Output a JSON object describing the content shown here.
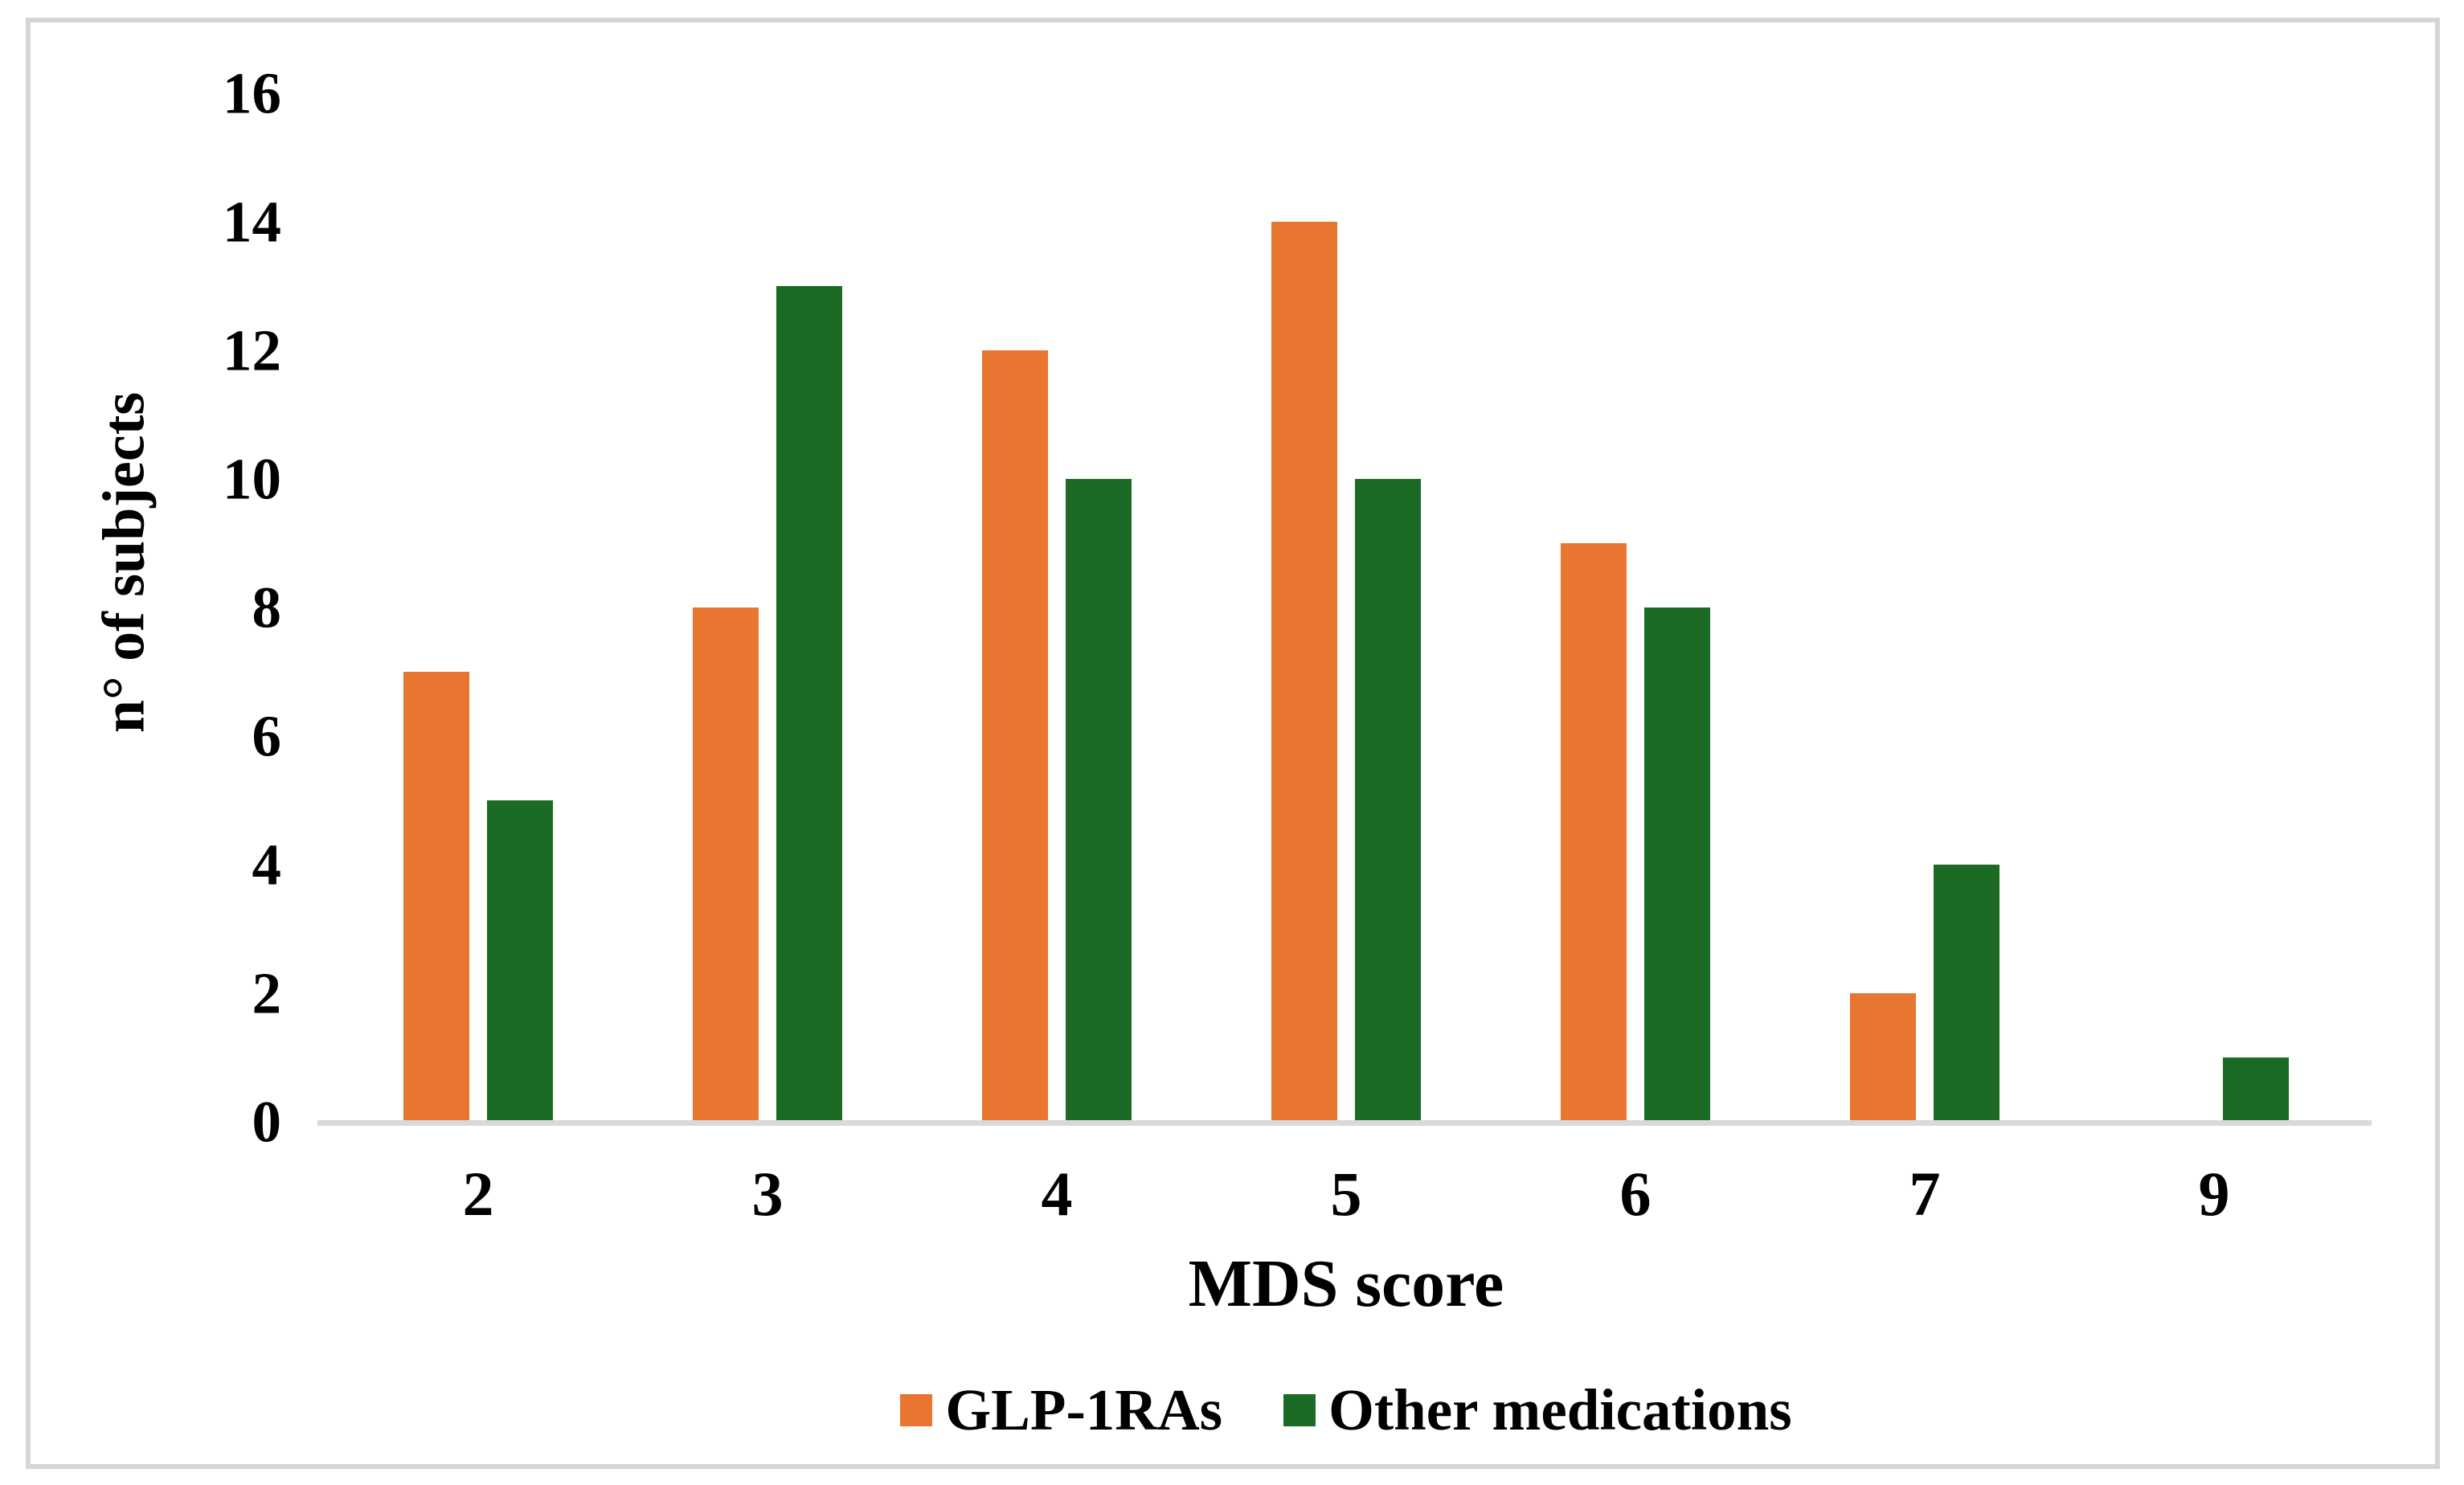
{
  "figure": {
    "background": "#FFFFFF",
    "frame_border_color": "#D6D6D6"
  },
  "chart_data": {
    "type": "bar",
    "title": "",
    "xlabel": "MDS score",
    "ylabel": "n° of subjects",
    "categories": [
      "2",
      "3",
      "4",
      "5",
      "6",
      "7",
      "9"
    ],
    "series": [
      {
        "name": "GLP-1RAs",
        "color": "#E87630",
        "values": [
          7,
          8,
          12,
          14,
          9,
          2,
          0
        ]
      },
      {
        "name": "Other medications",
        "color": "#1B6B25",
        "values": [
          5,
          13,
          10,
          10,
          8,
          4,
          1
        ]
      }
    ],
    "ylim": [
      0,
      16
    ],
    "ytick_step": 2,
    "yticks": [
      "0",
      "2",
      "4",
      "6",
      "8",
      "10",
      "12",
      "14",
      "16"
    ],
    "grid": "off",
    "legend_position": "bottom",
    "axis_line_color": "#D9D9D9"
  }
}
